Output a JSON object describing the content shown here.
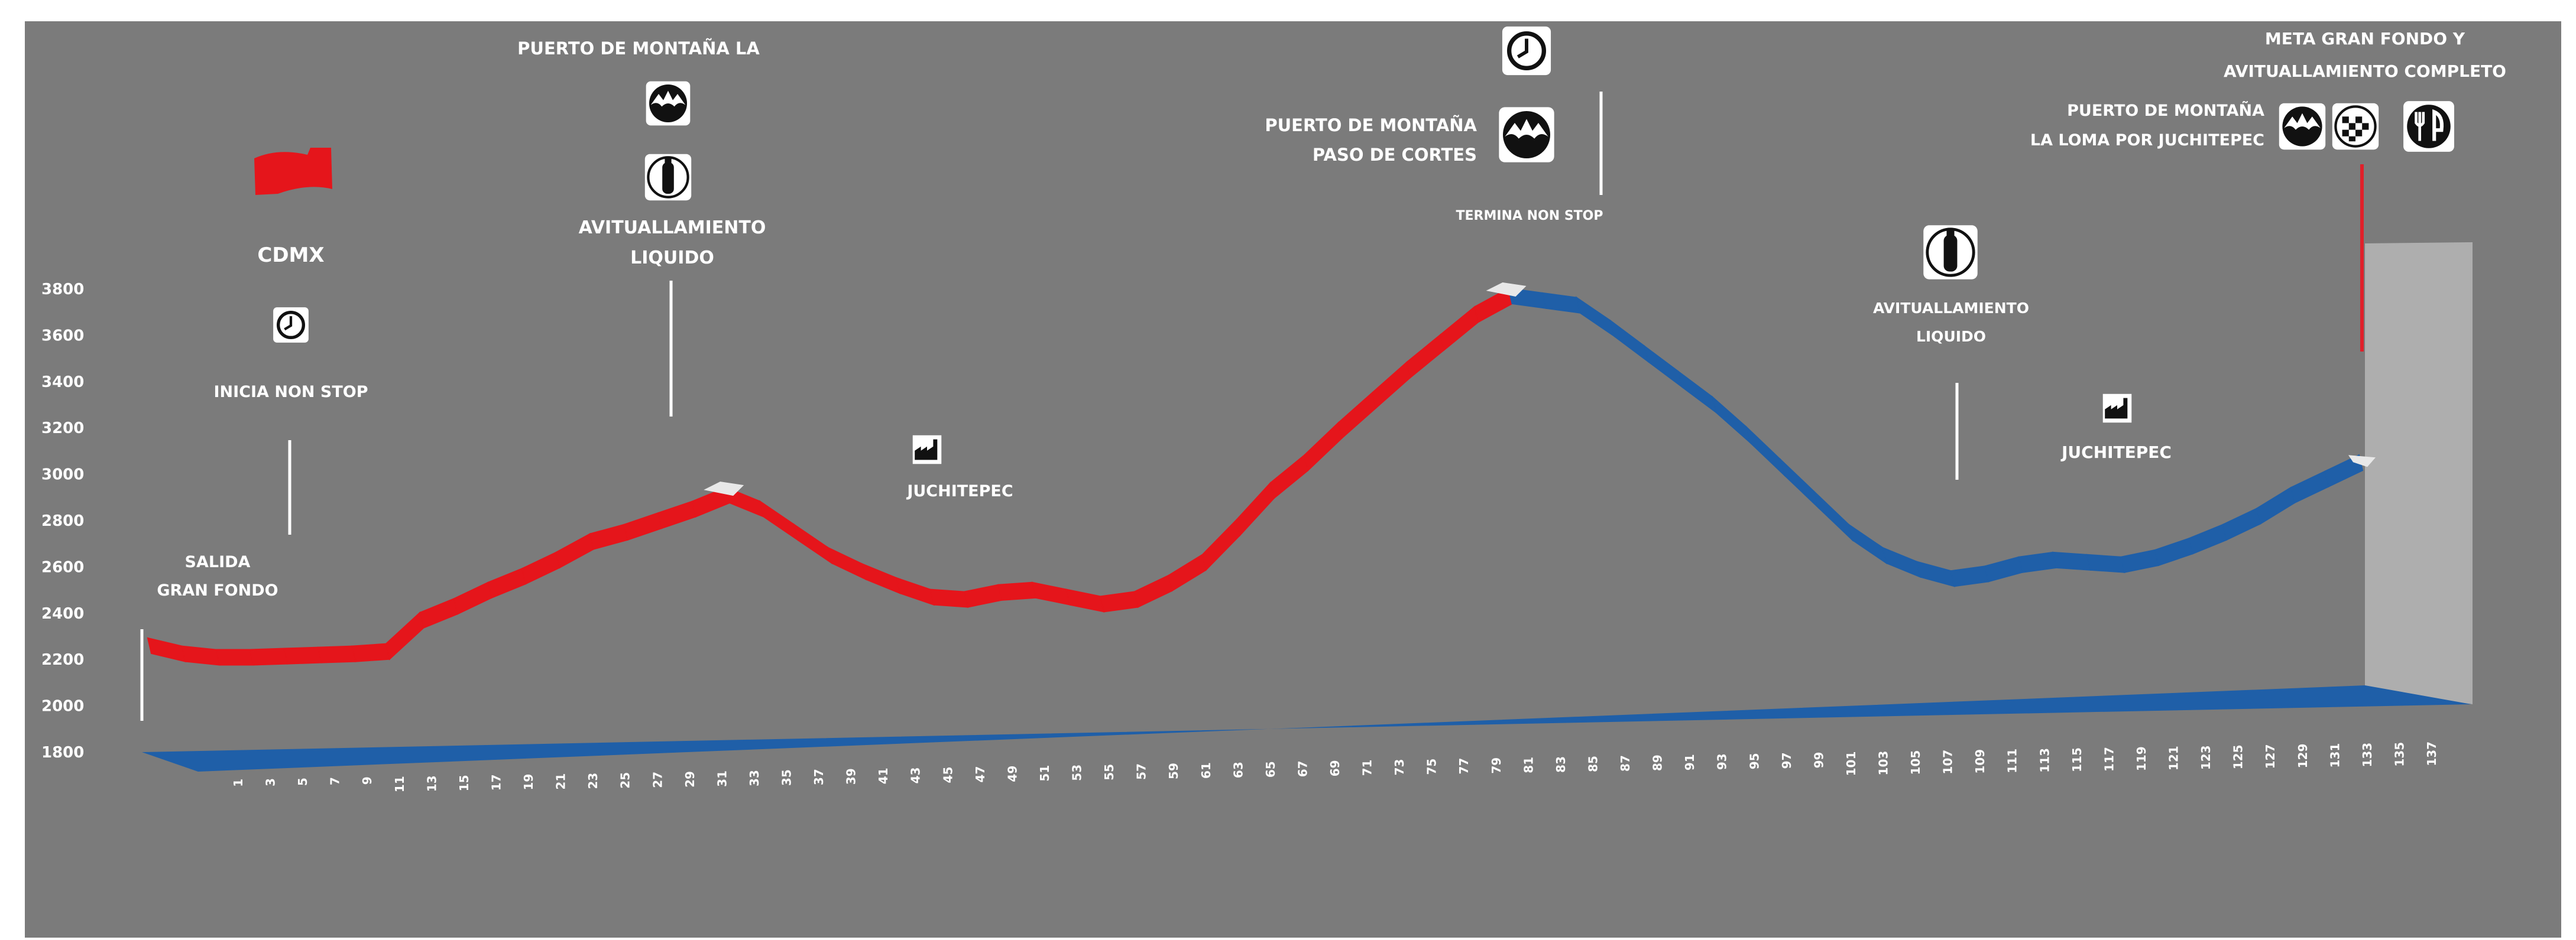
{
  "chart_data": {
    "type": "line",
    "style": "3d-ribbon-elevation-profile",
    "colors": {
      "background": "#7b7b7b",
      "ascent": "#e5151b",
      "descent": "#1f5fa8",
      "floor": "#1f5fa8",
      "back_wall": "#aeaeae",
      "summit_cap": "#e8e8e8",
      "text": "#ffffff",
      "finish_marker": "#e0202a"
    },
    "y_axis": {
      "ticks": [
        "1800",
        "2000",
        "2200",
        "2400",
        "2600",
        "2800",
        "3000",
        "3200",
        "3400",
        "3600",
        "3800"
      ],
      "ylim": [
        1800,
        3800
      ],
      "label": ""
    },
    "x_axis": {
      "ticks": [
        "1",
        "3",
        "5",
        "7",
        "9",
        "11",
        "13",
        "15",
        "17",
        "19",
        "21",
        "23",
        "25",
        "27",
        "29",
        "31",
        "33",
        "35",
        "37",
        "39",
        "41",
        "43",
        "45",
        "47",
        "49",
        "51",
        "53",
        "55",
        "57",
        "59",
        "61",
        "63",
        "65",
        "67",
        "69",
        "71",
        "73",
        "75",
        "77",
        "79",
        "81",
        "83",
        "85",
        "87",
        "89",
        "91",
        "93",
        "95",
        "97",
        "99",
        "101",
        "103",
        "105",
        "107",
        "109",
        "111",
        "113",
        "115",
        "117",
        "119",
        "121",
        "123",
        "125",
        "127",
        "129",
        "131",
        "133",
        "135",
        "137"
      ],
      "label": ""
    },
    "profile": {
      "x": [
        1,
        3,
        5,
        7,
        9,
        11,
        13,
        15,
        17,
        19,
        21,
        23,
        25,
        27,
        29,
        31,
        33,
        35,
        37,
        39,
        41,
        43,
        45,
        47,
        49,
        51,
        53,
        55,
        57,
        59,
        61,
        63,
        65,
        67,
        69,
        71,
        73,
        75,
        77,
        79,
        81,
        83,
        85,
        87,
        89,
        91,
        93,
        95,
        97,
        99,
        101,
        103,
        105,
        107,
        109,
        111,
        113,
        115,
        117,
        119,
        121,
        123,
        125,
        127,
        129,
        131
      ],
      "elevation": [
        2290,
        2255,
        2240,
        2240,
        2245,
        2250,
        2255,
        2265,
        2400,
        2460,
        2530,
        2590,
        2660,
        2740,
        2780,
        2830,
        2880,
        2940,
        2880,
        2780,
        2680,
        2610,
        2550,
        2500,
        2490,
        2520,
        2530,
        2500,
        2470,
        2490,
        2560,
        2650,
        2800,
        2960,
        3080,
        3220,
        3350,
        3480,
        3600,
        3720,
        3800,
        3780,
        3760,
        3660,
        3550,
        3440,
        3330,
        3200,
        3060,
        2920,
        2780,
        2680,
        2620,
        2580,
        2600,
        2640,
        2660,
        2650,
        2640,
        2670,
        2720,
        2780,
        2850,
        2940,
        3010,
        3080
      ],
      "summit_km": 83,
      "non_stop_end_km": 83
    },
    "annotations": {
      "cdmx": "CDMX",
      "inicia_non_stop": "INICIA NON STOP",
      "salida_1": "SALIDA",
      "salida_2": "GRAN FONDO",
      "puerto_la": "PUERTO DE MONTAÑA LA",
      "avit_liquido_1_a": "AVITUALLAMIENTO",
      "avit_liquido_1_b": "LIQUIDO",
      "juchitepec_1": "JUCHITEPEC",
      "puerto_paso_1": "PUERTO DE MONTAÑA",
      "puerto_paso_2": "PASO DE CORTES",
      "termina_non_stop": "TERMINA NON STOP",
      "avit_liquido_2_a": "AVITUALLAMIENTO",
      "avit_liquido_2_b": "LIQUIDO",
      "juchitepec_2": "JUCHITEPEC",
      "meta_1": "META GRAN FONDO Y",
      "meta_2": "AVITUALLAMIENTO COMPLETO",
      "loma_1": "PUERTO DE MONTAÑA",
      "loma_2": "LA LOMA POR  JUCHITEPEC"
    },
    "icons": [
      "flag-icon",
      "clock-icon",
      "mountain-icon",
      "bottle-icon",
      "factory-icon",
      "checkered-flag-icon",
      "food-icon"
    ]
  }
}
